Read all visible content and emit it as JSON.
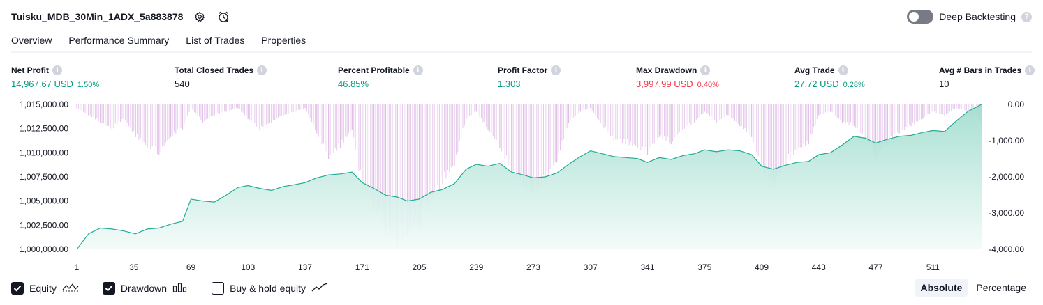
{
  "strategy": {
    "name": "Tuisku_MDB_30Min_1ADX_5a883878"
  },
  "deep_backtesting": {
    "label": "Deep Backtesting",
    "enabled": false,
    "help": "?"
  },
  "tabs": [
    {
      "label": "Overview",
      "active": true
    },
    {
      "label": "Performance Summary",
      "active": false
    },
    {
      "label": "List of Trades",
      "active": false
    },
    {
      "label": "Properties",
      "active": false
    }
  ],
  "metrics": {
    "info_glyph": "i",
    "net_profit": {
      "label": "Net Profit",
      "value": "14,967.67 USD",
      "pct": "1.50%"
    },
    "total_closed_trades": {
      "label": "Total Closed Trades",
      "value": "540"
    },
    "percent_profitable": {
      "label": "Percent Profitable",
      "value": "46.85%"
    },
    "profit_factor": {
      "label": "Profit Factor",
      "value": "1.303"
    },
    "max_drawdown": {
      "label": "Max Drawdown",
      "value": "3,997.99 USD",
      "pct": "0.40%"
    },
    "avg_trade": {
      "label": "Avg Trade",
      "value": "27.72 USD",
      "pct": "0.28%"
    },
    "avg_bars": {
      "label": "Avg # Bars in Trades",
      "value": "10"
    }
  },
  "colors": {
    "equity_line": "#22ab94",
    "equity_fill_top": "#9fdccd",
    "equity_fill_bottom": "#f3fbf9",
    "drawdown_bar": "#e1bee7",
    "drawdown_bar_overlap": "#b3b8e6",
    "positive": "#089981",
    "negative": "#f23645"
  },
  "chart_data": {
    "type": "area",
    "x_ticks": [
      "1",
      "35",
      "69",
      "103",
      "137",
      "171",
      "205",
      "239",
      "273",
      "307",
      "341",
      "375",
      "409",
      "443",
      "477",
      "511"
    ],
    "x_range": [
      1,
      540
    ],
    "left_axis": {
      "ticks": [
        "1,015,000.00",
        "1,012,500.00",
        "1,010,000.00",
        "1,007,500.00",
        "1,005,000.00",
        "1,002,500.00",
        "1,000,000.00"
      ],
      "range": [
        1000000,
        1015000
      ]
    },
    "right_axis": {
      "ticks": [
        "0.00",
        "-1,000.00",
        "-2,000.00",
        "-3,000.00",
        "-4,000.00"
      ],
      "range": [
        -4000,
        0
      ]
    },
    "series": [
      {
        "name": "Equity",
        "axis": "left",
        "x": [
          1,
          8,
          15,
          22,
          29,
          36,
          43,
          50,
          57,
          64,
          69,
          76,
          83,
          90,
          97,
          103,
          110,
          117,
          124,
          131,
          137,
          144,
          151,
          158,
          165,
          171,
          178,
          185,
          192,
          198,
          205,
          212,
          219,
          226,
          233,
          239,
          246,
          253,
          260,
          267,
          273,
          280,
          287,
          294,
          301,
          307,
          314,
          321,
          328,
          335,
          341,
          348,
          355,
          362,
          369,
          375,
          382,
          389,
          396,
          403,
          409,
          416,
          423,
          430,
          437,
          443,
          450,
          457,
          464,
          471,
          477,
          484,
          491,
          498,
          505,
          511,
          518,
          525,
          532,
          540
        ],
        "y": [
          1000000,
          1001600,
          1002200,
          1002100,
          1001900,
          1001600,
          1002100,
          1002200,
          1002600,
          1002900,
          1005200,
          1005000,
          1004900,
          1005600,
          1006400,
          1006600,
          1006300,
          1006100,
          1006500,
          1006700,
          1006900,
          1007400,
          1007700,
          1007800,
          1008000,
          1006900,
          1006300,
          1005600,
          1005400,
          1005000,
          1005200,
          1005900,
          1006200,
          1006800,
          1008300,
          1008800,
          1008600,
          1008900,
          1008000,
          1007700,
          1007400,
          1007500,
          1007900,
          1008800,
          1009600,
          1010200,
          1009900,
          1009600,
          1009500,
          1009400,
          1009000,
          1009500,
          1009300,
          1009700,
          1009900,
          1010300,
          1010100,
          1010300,
          1010200,
          1009800,
          1008600,
          1008300,
          1008700,
          1009000,
          1009100,
          1009800,
          1010000,
          1010800,
          1011700,
          1011500,
          1011000,
          1011400,
          1011700,
          1011800,
          1012100,
          1012300,
          1012200,
          1013300,
          1014300,
          1015000
        ]
      },
      {
        "name": "Drawdown",
        "axis": "right",
        "x": [
          1,
          8,
          15,
          22,
          29,
          36,
          43,
          50,
          57,
          64,
          69,
          76,
          83,
          90,
          97,
          103,
          110,
          117,
          124,
          131,
          137,
          144,
          151,
          158,
          165,
          171,
          178,
          185,
          192,
          198,
          205,
          212,
          219,
          226,
          233,
          239,
          246,
          253,
          260,
          267,
          273,
          280,
          287,
          294,
          301,
          307,
          314,
          321,
          328,
          335,
          341,
          348,
          355,
          362,
          369,
          375,
          382,
          389,
          396,
          403,
          409,
          416,
          423,
          430,
          437,
          443,
          450,
          457,
          464,
          471,
          477,
          484,
          491,
          498,
          505,
          511,
          518,
          525,
          532,
          540
        ],
        "y": [
          -100,
          -300,
          -500,
          -700,
          -400,
          -900,
          -1200,
          -1400,
          -900,
          -700,
          -100,
          -500,
          -300,
          -200,
          -100,
          -400,
          -700,
          -500,
          -300,
          -200,
          -100,
          -800,
          -1500,
          -1200,
          -700,
          -2400,
          -2900,
          -3600,
          -3900,
          -3600,
          -3400,
          -2800,
          -2200,
          -1700,
          -400,
          -200,
          -700,
          -1200,
          -1900,
          -2200,
          -2600,
          -2200,
          -1600,
          -500,
          -200,
          -100,
          -600,
          -1000,
          -1100,
          -1200,
          -1400,
          -900,
          -1100,
          -700,
          -500,
          -200,
          -500,
          -300,
          -600,
          -900,
          -1800,
          -2300,
          -1700,
          -1300,
          -1100,
          -300,
          -200,
          -500,
          -600,
          -1000,
          -1500,
          -1100,
          -800,
          -600,
          -400,
          -200,
          -300,
          -100,
          -200,
          -500
        ]
      }
    ]
  },
  "legend": [
    {
      "label": "Equity",
      "checked": true
    },
    {
      "label": "Drawdown",
      "checked": true
    },
    {
      "label": "Buy & hold equity",
      "checked": false
    }
  ],
  "mode": {
    "absolute": "Absolute",
    "percentage": "Percentage",
    "selected": "absolute"
  }
}
